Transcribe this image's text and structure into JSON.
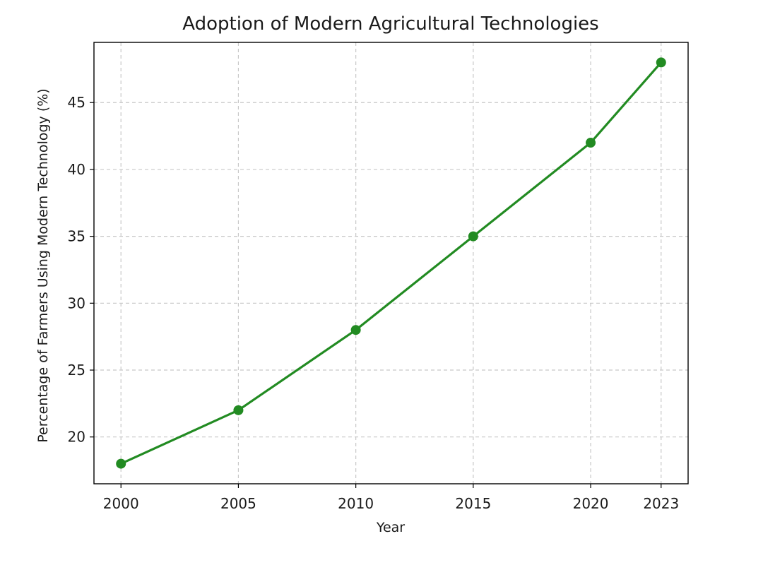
{
  "chart_data": {
    "type": "line",
    "title": "Adoption of Modern Agricultural Technologies",
    "xlabel": "Year",
    "ylabel": "Percentage of Farmers Using Modern Technology (%)",
    "x": [
      2000,
      2005,
      2010,
      2015,
      2020,
      2023
    ],
    "series": [
      {
        "values": [
          18,
          22,
          28,
          35,
          42,
          48
        ],
        "color": "#228b22",
        "marker": "circle"
      }
    ],
    "xticks": [
      "2000",
      "2005",
      "2010",
      "2015",
      "2020",
      "2023"
    ],
    "yticks": [
      20,
      25,
      30,
      35,
      40,
      45
    ],
    "xlim": [
      1998.85,
      2024.15
    ],
    "ylim": [
      16.5,
      49.5
    ],
    "grid": true,
    "legend": "none"
  }
}
